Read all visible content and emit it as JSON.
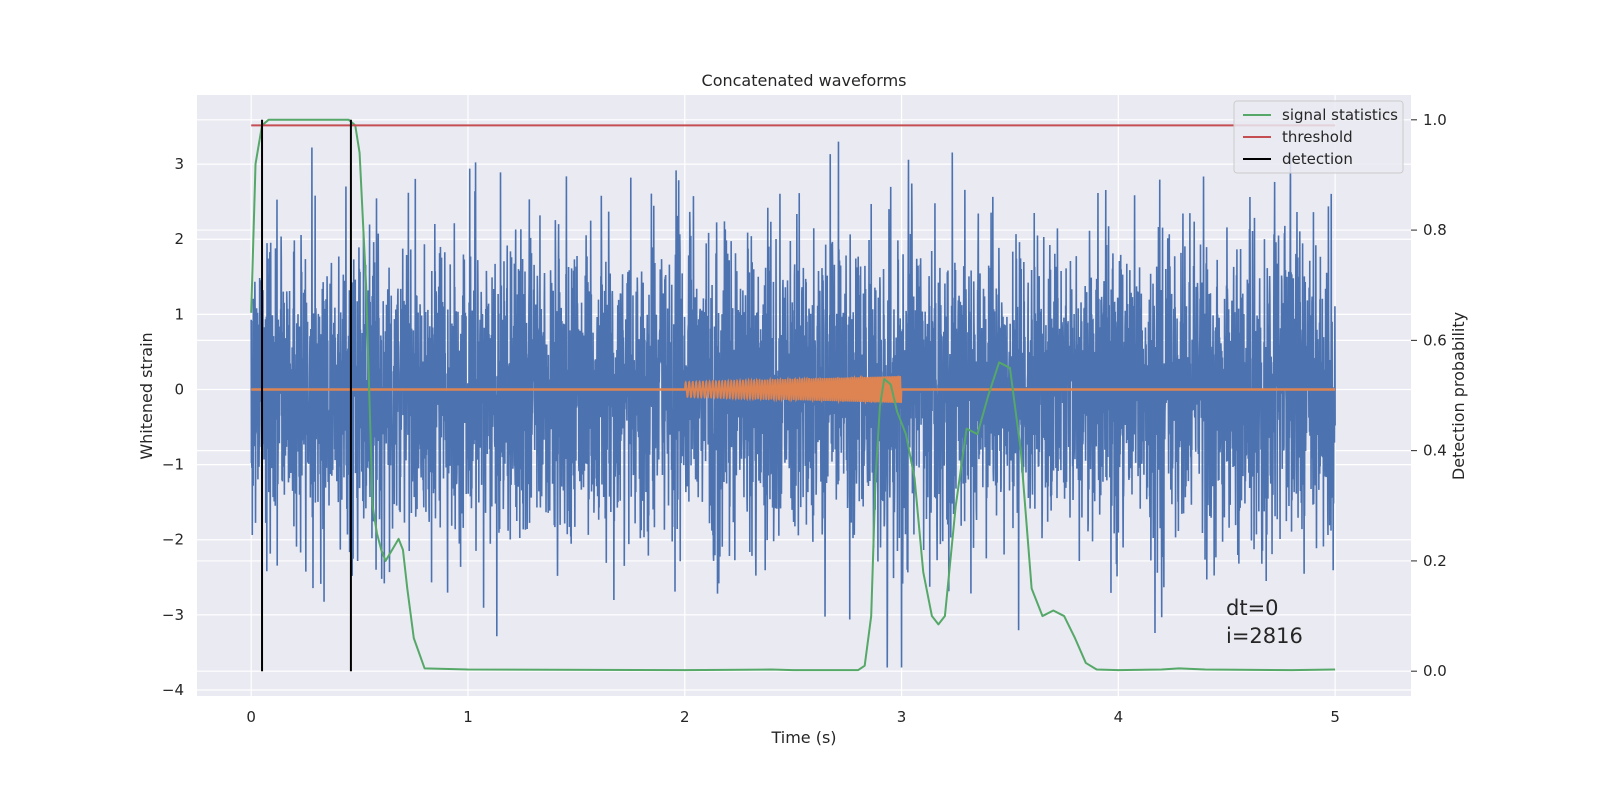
{
  "chart_data": {
    "type": "line",
    "title": "Concatenated waveforms",
    "xlabel": "Time (s)",
    "ylabel": "Whitened strain",
    "y2label": "Detection probability",
    "xlim": [
      -0.25,
      5.35
    ],
    "ylim": [
      -4.08,
      3.92
    ],
    "y2lim": [
      -0.045,
      1.045
    ],
    "xticks": [
      0,
      1,
      2,
      3,
      4,
      5
    ],
    "xtick_labels": [
      "0",
      "1",
      "2",
      "3",
      "4",
      "5"
    ],
    "yticks": [
      3,
      2,
      1,
      0,
      -1,
      -2,
      -3,
      -4
    ],
    "ytick_labels": [
      "3",
      "2",
      "1",
      "0",
      "−1",
      "−2",
      "−3",
      "−4"
    ],
    "y2ticks": [
      1.0,
      0.8,
      0.6,
      0.4,
      0.2,
      0.0
    ],
    "y2tick_labels": [
      "1.0",
      "0.8",
      "0.6",
      "0.4",
      "0.2",
      "0.0"
    ],
    "grid": true,
    "legend_position": "top-right",
    "legend": [
      {
        "label": "signal statistics",
        "color": "#55a868"
      },
      {
        "label": "threshold",
        "color": "#c44e52"
      },
      {
        "label": "detection",
        "color": "#000000"
      }
    ],
    "series": [
      {
        "role": "whitened strain (noise)",
        "axis": "left",
        "color": "#4c72b0",
        "x_range": [
          0,
          5
        ],
        "typical_amplitude": 1.0,
        "peak_positive": 3.3,
        "peak_negative": -3.7
      },
      {
        "role": "injected chirp",
        "axis": "left",
        "color": "#dd8452",
        "x_range": [
          2,
          3
        ],
        "amplitude_start": 0.1,
        "amplitude_end": 0.18,
        "baseline": 0
      },
      {
        "name": "signal statistics",
        "axis": "right",
        "color": "#55a868",
        "x": [
          0,
          0.02,
          0.05,
          0.08,
          0.2,
          0.45,
          0.48,
          0.5,
          0.53,
          0.56,
          0.58,
          0.6,
          0.62,
          0.65,
          0.68,
          0.7,
          0.72,
          0.75,
          0.8,
          1.0,
          2.0,
          2.4,
          2.5,
          2.8,
          2.83,
          2.86,
          2.88,
          2.9,
          2.92,
          2.95,
          2.98,
          3.02,
          3.06,
          3.1,
          3.14,
          3.17,
          3.2,
          3.25,
          3.3,
          3.35,
          3.4,
          3.45,
          3.5,
          3.55,
          3.6,
          3.65,
          3.7,
          3.75,
          3.8,
          3.85,
          3.9,
          4.0,
          4.2,
          4.28,
          4.4,
          4.8,
          5.0
        ],
        "y": [
          0.65,
          0.92,
          0.99,
          1.0,
          1.0,
          1.0,
          0.99,
          0.94,
          0.7,
          0.3,
          0.25,
          0.22,
          0.2,
          0.22,
          0.24,
          0.22,
          0.15,
          0.06,
          0.005,
          0.003,
          0.002,
          0.003,
          0.002,
          0.002,
          0.01,
          0.1,
          0.35,
          0.48,
          0.53,
          0.52,
          0.47,
          0.43,
          0.35,
          0.18,
          0.1,
          0.085,
          0.1,
          0.3,
          0.44,
          0.43,
          0.5,
          0.56,
          0.55,
          0.4,
          0.15,
          0.1,
          0.11,
          0.1,
          0.06,
          0.015,
          0.003,
          0.002,
          0.003,
          0.005,
          0.003,
          0.002,
          0.003
        ]
      },
      {
        "name": "threshold",
        "axis": "right",
        "color": "#c44e52",
        "x": [
          0,
          5
        ],
        "y": [
          0.99,
          0.99
        ]
      },
      {
        "name": "detection",
        "axis": "right",
        "color": "#000000",
        "type": "vlines",
        "x": [
          0.05,
          0.46
        ],
        "y_range": [
          0,
          1.0
        ]
      }
    ],
    "annotations": [
      "dt=0",
      "i=2816"
    ]
  }
}
